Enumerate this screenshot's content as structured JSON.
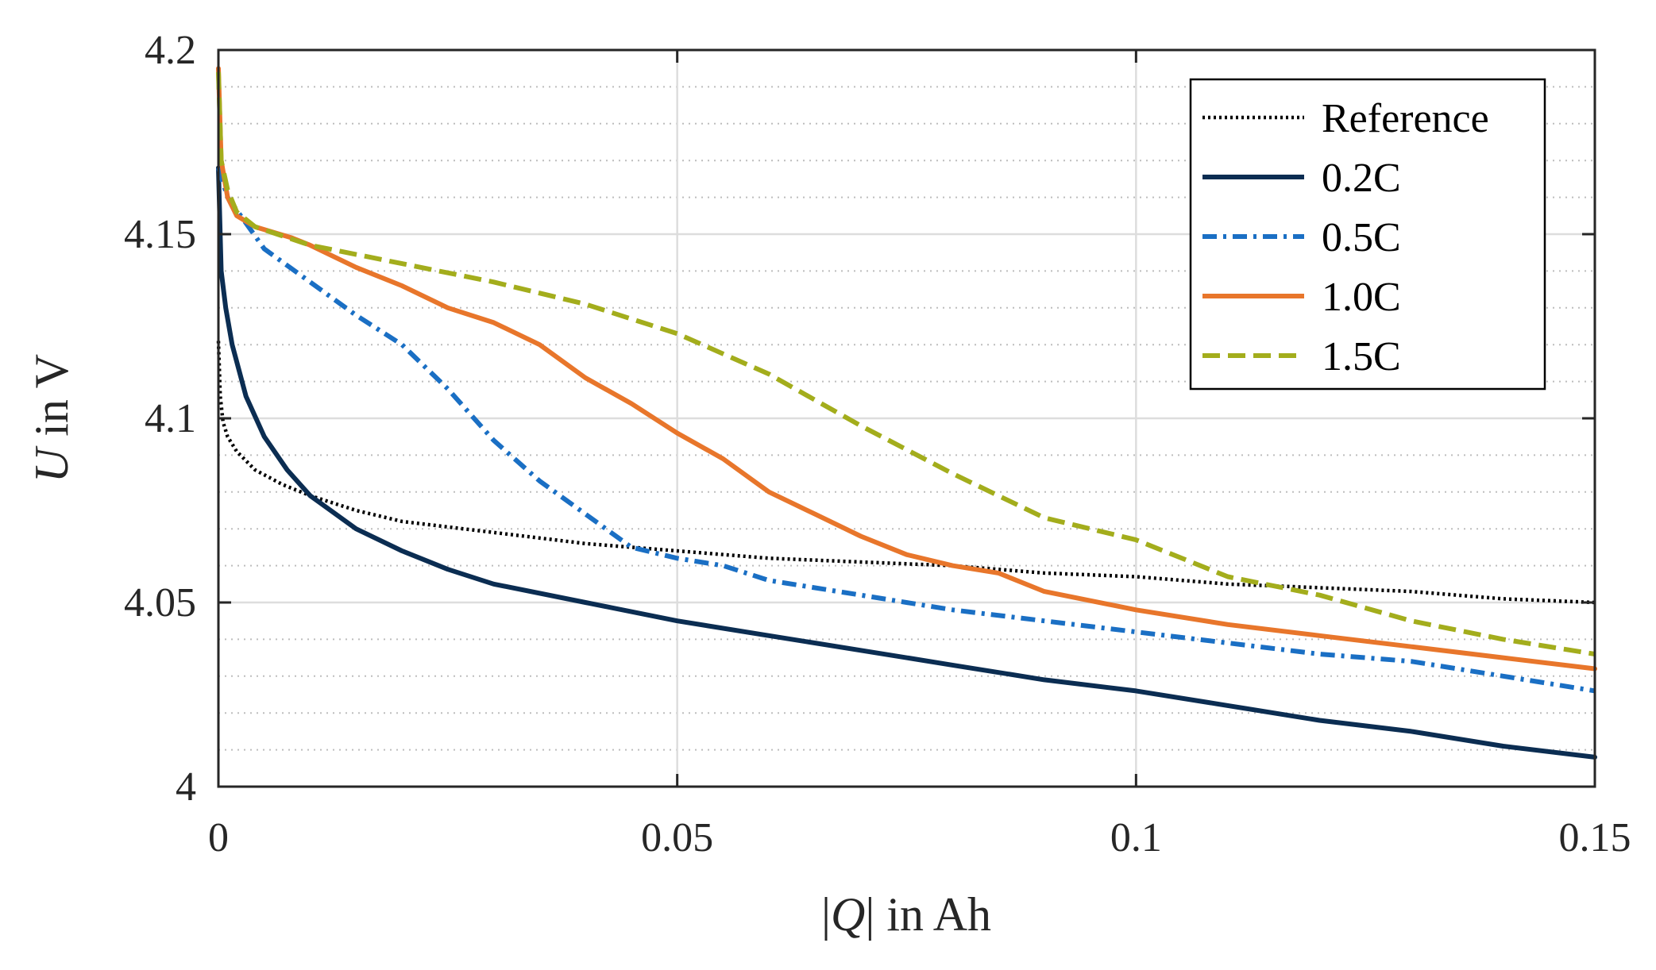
{
  "chart_data": {
    "type": "line",
    "title": "",
    "xlabel": {
      "pre": "|",
      "var": "Q",
      "post": "| in Ah"
    },
    "ylabel": {
      "var": "U",
      "post": " in V"
    },
    "xlim": [
      0,
      0.15
    ],
    "ylim": [
      4.0,
      4.2
    ],
    "xticks": [
      0,
      0.05,
      0.1,
      0.15
    ],
    "xtick_labels": [
      "0",
      "0.05",
      "0.1",
      "0.15"
    ],
    "yticks": [
      4.0,
      4.05,
      4.1,
      4.15,
      4.2
    ],
    "ytick_labels": [
      "4",
      "4.05",
      "4.1",
      "4.15",
      "4.2"
    ],
    "grid": {
      "major": true,
      "minor_y": true
    },
    "legend_position": "top-right",
    "series": [
      {
        "name": "Reference",
        "color": "#000000",
        "style": "dotted",
        "x": [
          0,
          0.0002,
          0.0005,
          0.001,
          0.002,
          0.004,
          0.007,
          0.01,
          0.015,
          0.02,
          0.03,
          0.04,
          0.05,
          0.06,
          0.07,
          0.08,
          0.09,
          0.1,
          0.11,
          0.12,
          0.13,
          0.14,
          0.15
        ],
        "y": [
          4.121,
          4.106,
          4.099,
          4.095,
          4.091,
          4.086,
          4.082,
          4.079,
          4.075,
          4.072,
          4.069,
          4.066,
          4.064,
          4.062,
          4.061,
          4.06,
          4.058,
          4.057,
          4.055,
          4.054,
          4.053,
          4.051,
          4.05
        ]
      },
      {
        "name": "0.2C",
        "color": "#0b2d52",
        "style": "solid",
        "x": [
          0,
          0.0003,
          0.0008,
          0.0015,
          0.003,
          0.005,
          0.0075,
          0.01,
          0.015,
          0.02,
          0.025,
          0.03,
          0.04,
          0.05,
          0.06,
          0.07,
          0.08,
          0.09,
          0.1,
          0.11,
          0.12,
          0.13,
          0.14,
          0.15
        ],
        "y": [
          4.168,
          4.14,
          4.13,
          4.12,
          4.106,
          4.095,
          4.086,
          4.079,
          4.07,
          4.064,
          4.059,
          4.055,
          4.05,
          4.045,
          4.041,
          4.037,
          4.033,
          4.029,
          4.026,
          4.022,
          4.018,
          4.015,
          4.011,
          4.008
        ]
      },
      {
        "name": "0.5C",
        "color": "#1a6fc4",
        "style": "dashdot",
        "x": [
          0,
          0.001,
          0.003,
          0.005,
          0.01,
          0.015,
          0.02,
          0.025,
          0.03,
          0.035,
          0.04,
          0.045,
          0.05,
          0.055,
          0.06,
          0.07,
          0.08,
          0.09,
          0.1,
          0.11,
          0.12,
          0.13,
          0.14,
          0.15
        ],
        "y": [
          4.168,
          4.16,
          4.153,
          4.146,
          4.137,
          4.128,
          4.12,
          4.108,
          4.094,
          4.083,
          4.074,
          4.065,
          4.062,
          4.06,
          4.056,
          4.052,
          4.048,
          4.045,
          4.042,
          4.039,
          4.036,
          4.034,
          4.03,
          4.026
        ]
      },
      {
        "name": "1.0C",
        "color": "#e8762b",
        "style": "solid",
        "x": [
          0,
          0.0003,
          0.001,
          0.002,
          0.004,
          0.008,
          0.01,
          0.015,
          0.02,
          0.025,
          0.03,
          0.035,
          0.04,
          0.045,
          0.05,
          0.055,
          0.06,
          0.065,
          0.07,
          0.075,
          0.08,
          0.085,
          0.09,
          0.1,
          0.11,
          0.12,
          0.13,
          0.14,
          0.15
        ],
        "y": [
          4.195,
          4.17,
          4.16,
          4.155,
          4.152,
          4.149,
          4.147,
          4.141,
          4.136,
          4.13,
          4.126,
          4.12,
          4.111,
          4.104,
          4.096,
          4.089,
          4.08,
          4.074,
          4.068,
          4.063,
          4.06,
          4.058,
          4.053,
          4.048,
          4.044,
          4.041,
          4.038,
          4.035,
          4.032
        ]
      },
      {
        "name": "1.5C",
        "color": "#a3ad1c",
        "style": "dashed",
        "x": [
          0,
          0.0003,
          0.001,
          0.002,
          0.004,
          0.01,
          0.02,
          0.03,
          0.04,
          0.05,
          0.06,
          0.07,
          0.08,
          0.09,
          0.1,
          0.11,
          0.12,
          0.13,
          0.14,
          0.15
        ],
        "y": [
          4.194,
          4.17,
          4.162,
          4.156,
          4.152,
          4.147,
          4.142,
          4.137,
          4.131,
          4.123,
          4.112,
          4.098,
          4.085,
          4.073,
          4.067,
          4.057,
          4.052,
          4.045,
          4.04,
          4.036
        ]
      }
    ]
  }
}
